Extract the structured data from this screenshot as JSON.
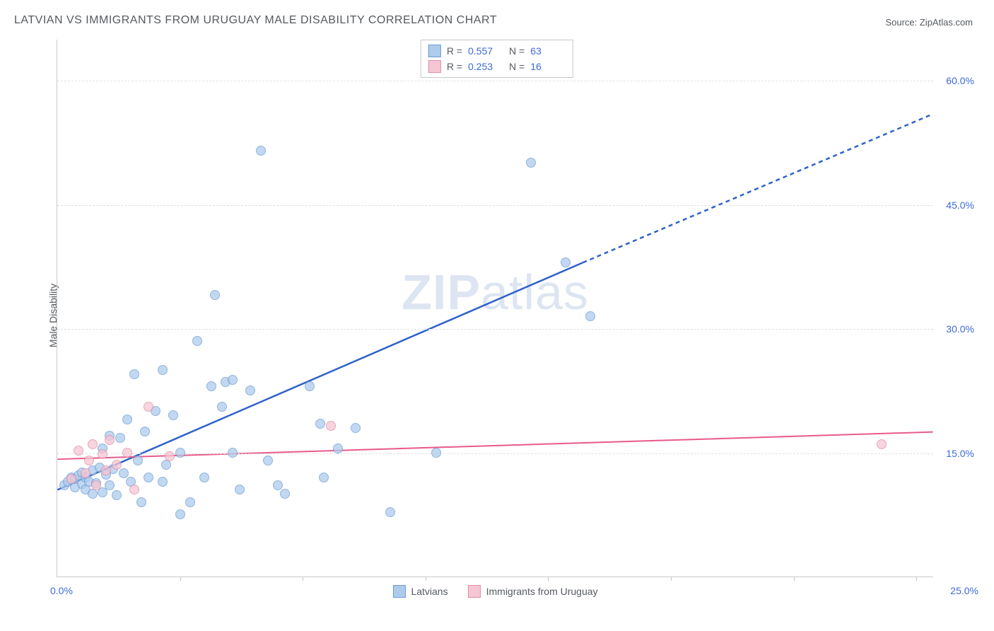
{
  "title": "LATVIAN VS IMMIGRANTS FROM URUGUAY MALE DISABILITY CORRELATION CHART",
  "source": "Source: ZipAtlas.com",
  "y_axis_label": "Male Disability",
  "watermark": "ZIPatlas",
  "chart": {
    "type": "scatter",
    "xlim": [
      0,
      25
    ],
    "ylim": [
      0,
      65
    ],
    "x_origin_label": "0.0%",
    "x_max_label": "25.0%",
    "y_ticks": [
      {
        "v": 15,
        "label": "15.0%"
      },
      {
        "v": 30,
        "label": "30.0%"
      },
      {
        "v": 45,
        "label": "45.0%"
      },
      {
        "v": 60,
        "label": "60.0%"
      }
    ],
    "x_tick_positions": [
      3.5,
      7,
      10.5,
      14,
      17.5,
      21,
      24.5
    ],
    "background_color": "#ffffff",
    "grid_color": "#e0e0e0",
    "marker_size": 14,
    "marker_border_width": 1.5,
    "series": [
      {
        "name": "Latvians",
        "fill": "#aecbeb",
        "stroke": "#6a9bd8",
        "fill_opacity": 0.75,
        "R": "0.557",
        "N": "63",
        "trend": {
          "color": "#2e62c9",
          "width": 2.5,
          "x1": 0,
          "y1": 10.5,
          "x2": 15,
          "y2": 38,
          "dash_from_x": 15,
          "x3": 25,
          "y3": 56
        },
        "points": [
          [
            0.2,
            11.0
          ],
          [
            0.3,
            11.5
          ],
          [
            0.4,
            12.0
          ],
          [
            0.5,
            10.8
          ],
          [
            0.5,
            11.8
          ],
          [
            0.6,
            12.2
          ],
          [
            0.7,
            11.2
          ],
          [
            0.7,
            12.6
          ],
          [
            0.8,
            10.5
          ],
          [
            0.8,
            12.0
          ],
          [
            0.9,
            11.5
          ],
          [
            1.0,
            10.0
          ],
          [
            1.0,
            12.8
          ],
          [
            1.1,
            11.3
          ],
          [
            1.2,
            13.2
          ],
          [
            1.3,
            10.2
          ],
          [
            1.3,
            15.5
          ],
          [
            1.4,
            12.3
          ],
          [
            1.5,
            17.0
          ],
          [
            1.5,
            11.0
          ],
          [
            1.6,
            13.0
          ],
          [
            1.7,
            9.8
          ],
          [
            1.8,
            16.8
          ],
          [
            1.9,
            12.5
          ],
          [
            2.0,
            19.0
          ],
          [
            2.1,
            11.5
          ],
          [
            2.2,
            24.5
          ],
          [
            2.3,
            14.0
          ],
          [
            2.4,
            9.0
          ],
          [
            2.5,
            17.5
          ],
          [
            2.6,
            12.0
          ],
          [
            2.8,
            20.0
          ],
          [
            3.0,
            25.0
          ],
          [
            3.0,
            11.5
          ],
          [
            3.1,
            13.5
          ],
          [
            3.3,
            19.5
          ],
          [
            3.5,
            15.0
          ],
          [
            3.5,
            7.5
          ],
          [
            3.8,
            9.0
          ],
          [
            4.0,
            28.5
          ],
          [
            4.2,
            12.0
          ],
          [
            4.4,
            23.0
          ],
          [
            4.5,
            34.0
          ],
          [
            4.7,
            20.5
          ],
          [
            4.8,
            23.5
          ],
          [
            5.0,
            15.0
          ],
          [
            5.0,
            23.8
          ],
          [
            5.2,
            10.5
          ],
          [
            5.5,
            22.5
          ],
          [
            5.8,
            51.5
          ],
          [
            6.0,
            14.0
          ],
          [
            6.3,
            11.0
          ],
          [
            6.5,
            10.0
          ],
          [
            7.2,
            23.0
          ],
          [
            7.5,
            18.5
          ],
          [
            7.6,
            12.0
          ],
          [
            8.0,
            15.5
          ],
          [
            8.5,
            18.0
          ],
          [
            9.5,
            7.8
          ],
          [
            10.8,
            15.0
          ],
          [
            13.5,
            50.0
          ],
          [
            14.5,
            38.0
          ],
          [
            15.2,
            31.5
          ]
        ]
      },
      {
        "name": "Immigrants from Uruguay",
        "fill": "#f5c6d4",
        "stroke": "#e28ca6",
        "fill_opacity": 0.75,
        "R": "0.253",
        "N": "16",
        "trend": {
          "color": "#e85a8a",
          "width": 2,
          "x1": 0,
          "y1": 14.2,
          "x2": 25,
          "y2": 17.5
        },
        "points": [
          [
            0.4,
            11.8
          ],
          [
            0.6,
            15.2
          ],
          [
            0.8,
            12.5
          ],
          [
            0.9,
            14.0
          ],
          [
            1.0,
            16.0
          ],
          [
            1.1,
            11.0
          ],
          [
            1.3,
            14.8
          ],
          [
            1.4,
            12.8
          ],
          [
            1.5,
            16.5
          ],
          [
            1.7,
            13.5
          ],
          [
            2.0,
            15.0
          ],
          [
            2.2,
            10.5
          ],
          [
            2.6,
            20.5
          ],
          [
            3.2,
            14.5
          ],
          [
            7.8,
            18.2
          ],
          [
            23.5,
            16.0
          ]
        ]
      }
    ]
  },
  "legend_bottom": [
    {
      "label": "Latvians",
      "fill": "#aecbeb",
      "stroke": "#6a9bd8"
    },
    {
      "label": "Immigrants from Uruguay",
      "fill": "#f5c6d4",
      "stroke": "#e28ca6"
    }
  ]
}
